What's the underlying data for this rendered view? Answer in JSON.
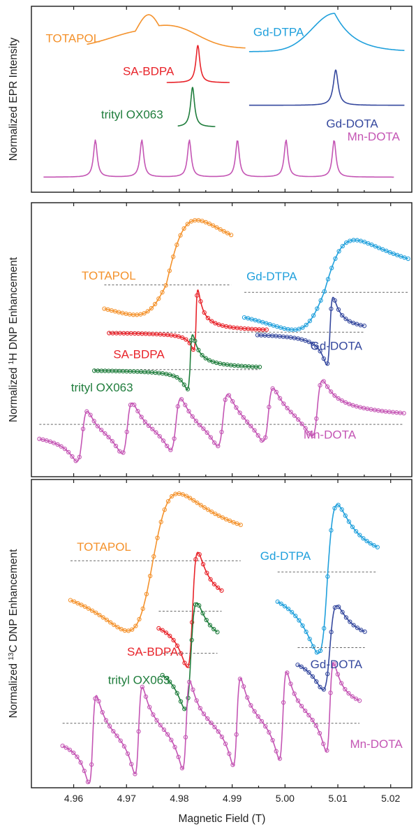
{
  "colors": {
    "TOTAPOL": "#f4922c",
    "SA-BDPA": "#e8232a",
    "trityl OX063": "#1f7d3c",
    "Gd-DTPA": "#20a0dc",
    "Gd-DOTA": "#35489e",
    "Mn-DOTA": "#c455b4"
  },
  "chart_data": {
    "type": "line",
    "xlabel": "Magnetic Field (T)",
    "xlim": [
      4.952,
      5.024
    ],
    "xticks": [
      "4.96",
      "4.97",
      "4.98",
      "4.99",
      "5.00",
      "5.01",
      "5.02"
    ],
    "panels": [
      {
        "ylabel_parts": [
          "Normalized EPR Intensity"
        ],
        "markers": false,
        "ylim": [
          -0.05,
          1.05
        ],
        "series": [
          {
            "name": "TOTAPOL",
            "kind": "broad",
            "center": 4.9742,
            "x_range": [
              4.9625,
              4.9925
            ],
            "offset": 0.8,
            "amp": 0.2
          },
          {
            "name": "SA-BDPA",
            "kind": "narrow",
            "center": 4.9835,
            "x_range": [
              4.9776,
              4.9895
            ],
            "offset": 0.598,
            "amp": 0.22
          },
          {
            "name": "trityl OX063",
            "kind": "narrow",
            "center": 4.9825,
            "x_range": [
              4.9797,
              4.9868
            ],
            "offset": 0.336,
            "amp": 0.234
          },
          {
            "name": "Gd-DTPA",
            "kind": "asym",
            "center": 5.0094,
            "x_range": [
              4.9932,
              5.0226
            ],
            "offset": 0.782,
            "amp": 0.226
          },
          {
            "name": "Gd-DOTA",
            "kind": "narrow",
            "center": 5.0096,
            "x_range": [
              4.9932,
              5.0226
            ],
            "offset": 0.464,
            "amp": 0.209
          },
          {
            "name": "Mn-DOTA",
            "kind": "sextet",
            "centers": [
              4.9641,
              4.9729,
              4.9819,
              4.991,
              5.0002,
              5.0093
            ],
            "x_range": [
              4.9543,
              5.0206
            ],
            "offset": 0.039,
            "amp": 0.22
          }
        ],
        "labels": [
          {
            "text": "TOTAPOL",
            "series": "TOTAPOL",
            "x": 4.9547,
            "y": 0.836,
            "anchor": "start"
          },
          {
            "text": "SA-BDPA",
            "series": "SA-BDPA",
            "x": 4.9693,
            "y": 0.643,
            "anchor": "start"
          },
          {
            "text": "trityl OX063",
            "series": "trityl OX063",
            "x": 4.9652,
            "y": 0.386,
            "anchor": "start"
          },
          {
            "text": "Gd-DTPA",
            "series": "Gd-DTPA",
            "x": 4.994,
            "y": 0.875,
            "anchor": "start"
          },
          {
            "text": "Gd-DOTA",
            "series": "Gd-DOTA",
            "x": 5.0078,
            "y": 0.333,
            "anchor": "start"
          },
          {
            "text": "Mn-DOTA",
            "series": "Mn-DOTA",
            "x": 5.0118,
            "y": 0.257,
            "anchor": "start"
          }
        ]
      },
      {
        "ylabel_parts": [
          "Normalized ",
          "1",
          "H DNP Enhancement"
        ],
        "markers": true,
        "ylim": [
          -0.05,
          1.05
        ],
        "series": [
          {
            "name": "TOTAPOL",
            "kind": "dispersion",
            "center": 4.9775,
            "width": 0.0058,
            "x_range": [
              4.9658,
              4.9898
            ],
            "offset": 0.72,
            "pos_amp": 0.26,
            "neg_amp": 0.12
          },
          {
            "name": "SA-BDPA",
            "kind": "dispersion",
            "center": 4.9831,
            "width": 0.0004,
            "x_range": [
              4.9667,
              4.9965
            ],
            "offset": 0.53,
            "pos_amp": 0.17,
            "neg_amp": 0.07
          },
          {
            "name": "trityl OX063",
            "kind": "dispersion",
            "center": 4.982,
            "width": 0.0005,
            "x_range": [
              4.9639,
              4.9952
            ],
            "offset": 0.38,
            "pos_amp": 0.14,
            "neg_amp": 0.08
          },
          {
            "name": "Gd-DTPA",
            "kind": "dispersion",
            "center": 5.0074,
            "width": 0.0058,
            "x_range": [
              4.9923,
              5.0233
            ],
            "offset": 0.69,
            "pos_amp": 0.21,
            "neg_amp": 0.15
          },
          {
            "name": "Gd-DOTA",
            "kind": "dispersion",
            "center": 5.0085,
            "width": 0.0006,
            "x_range": [
              4.9948,
              5.015
            ],
            "offset": 0.53,
            "pos_amp": 0.14,
            "neg_amp": 0.13
          },
          {
            "name": "Mn-DOTA",
            "kind": "multiplet",
            "centers": [
              4.9616,
              4.9701,
              4.9793,
              4.9882,
              4.9968,
              5.0061
            ],
            "x_range": [
              4.9535,
              5.0225
            ],
            "offset": 0.16,
            "pos_amp": 0.12,
            "neg_amp": 0.1,
            "width": 0.001
          }
        ],
        "labels": [
          {
            "text": "TOTAPOL",
            "series": "TOTAPOL",
            "x": 4.9615,
            "y": 0.741,
            "anchor": "start"
          },
          {
            "text": "SA-BDPA",
            "series": "SA-BDPA",
            "x": 4.9675,
            "y": 0.425,
            "anchor": "start"
          },
          {
            "text": "trityl OX063",
            "series": "trityl OX063",
            "x": 4.9595,
            "y": 0.292,
            "anchor": "start"
          },
          {
            "text": "Gd-DTPA",
            "series": "Gd-DTPA",
            "x": 4.9927,
            "y": 0.739,
            "anchor": "start"
          },
          {
            "text": "Gd-DOTA",
            "series": "Gd-DOTA",
            "x": 5.0048,
            "y": 0.459,
            "anchor": "start"
          },
          {
            "text": "Mn-DOTA",
            "series": "Mn-DOTA",
            "x": 5.0035,
            "y": 0.103,
            "anchor": "start"
          }
        ]
      },
      {
        "ylabel_parts": [
          "Normalized ",
          "13",
          "C DNP Enhancement"
        ],
        "markers": true,
        "ylim": [
          -0.05,
          1.05
        ],
        "series": [
          {
            "name": "TOTAPOL",
            "kind": "dispersion",
            "center": 4.975,
            "width": 0.0048,
            "x_range": [
              4.9594,
              4.9916
            ],
            "offset": 0.76,
            "pos_amp": 0.24,
            "neg_amp": 0.25
          },
          {
            "name": "SA-BDPA",
            "kind": "dispersion",
            "center": 4.9825,
            "width": 0.001,
            "x_range": [
              4.9761,
              4.988
            ],
            "offset": 0.58,
            "pos_amp": 0.21,
            "neg_amp": 0.2
          },
          {
            "name": "trityl OX063",
            "kind": "dispersion",
            "center": 4.9822,
            "width": 0.0011,
            "x_range": [
              4.9768,
              4.9872
            ],
            "offset": 0.43,
            "pos_amp": 0.18,
            "neg_amp": 0.2
          },
          {
            "name": "Gd-DTPA",
            "kind": "dispersion",
            "center": 5.0081,
            "width": 0.0018,
            "x_range": [
              4.9986,
              5.0175
            ],
            "offset": 0.72,
            "pos_amp": 0.24,
            "neg_amp": 0.29
          },
          {
            "name": "Gd-DOTA",
            "kind": "dispersion",
            "center": 5.0085,
            "width": 0.0013,
            "x_range": [
              5.0024,
              5.0151
            ],
            "offset": 0.45,
            "pos_amp": 0.15,
            "neg_amp": 0.15
          },
          {
            "name": "Mn-DOTA",
            "kind": "multiplet",
            "centers": [
              4.9636,
              4.9723,
              4.9813,
              4.9909,
              4.9996,
              5.0085
            ],
            "x_range": [
              4.9579,
              5.0141
            ],
            "offset": 0.18,
            "pos_amp": 0.16,
            "neg_amp": 0.16,
            "width": 0.0007
          }
        ],
        "labels": [
          {
            "text": "TOTAPOL",
            "series": "TOTAPOL",
            "x": 4.9606,
            "y": 0.795,
            "anchor": "start"
          },
          {
            "text": "SA-BDPA",
            "series": "SA-BDPA",
            "x": 4.9701,
            "y": 0.422,
            "anchor": "start"
          },
          {
            "text": "trityl OX063",
            "series": "trityl OX063",
            "x": 4.9665,
            "y": 0.321,
            "anchor": "start"
          },
          {
            "text": "Gd-DTPA",
            "series": "Gd-DTPA",
            "x": 4.9953,
            "y": 0.763,
            "anchor": "start"
          },
          {
            "text": "Gd-DOTA",
            "series": "Gd-DOTA",
            "x": 5.0048,
            "y": 0.377,
            "anchor": "start"
          },
          {
            "text": "Mn-DOTA",
            "series": "Mn-DOTA",
            "x": 5.0123,
            "y": 0.092,
            "anchor": "start"
          }
        ]
      }
    ]
  }
}
